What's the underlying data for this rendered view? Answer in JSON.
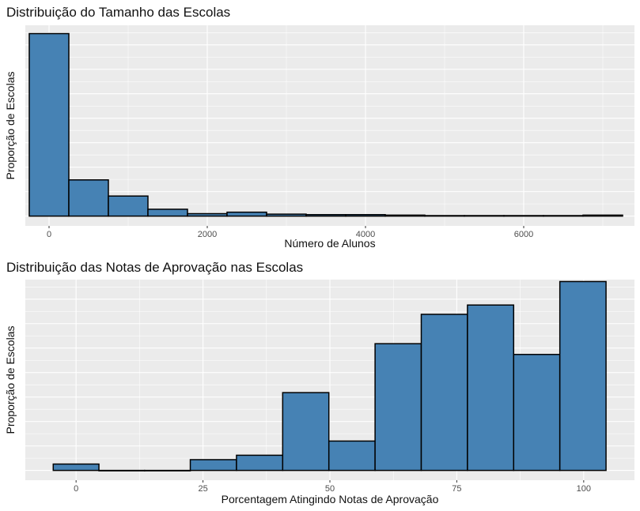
{
  "chart_data": [
    {
      "type": "bar",
      "title": "Distribuição do Tamanho das Escolas",
      "xlabel": "Número de Alunos",
      "ylabel": "Proporção de Escolas",
      "xlim": [
        -300,
        7400
      ],
      "ylim": [
        -0.02,
        0.39
      ],
      "x_ticks": [
        0,
        2000,
        4000,
        6000
      ],
      "grid": true,
      "bin_width": 500,
      "bins": [
        {
          "start": -250,
          "end": 250,
          "value": 0.373
        },
        {
          "start": 250,
          "end": 750,
          "value": 0.074
        },
        {
          "start": 750,
          "end": 1250,
          "value": 0.041
        },
        {
          "start": 1250,
          "end": 1750,
          "value": 0.014
        },
        {
          "start": 1750,
          "end": 2250,
          "value": 0.005
        },
        {
          "start": 2250,
          "end": 2750,
          "value": 0.008
        },
        {
          "start": 2750,
          "end": 3250,
          "value": 0.004
        },
        {
          "start": 3250,
          "end": 3750,
          "value": 0.003
        },
        {
          "start": 3750,
          "end": 4250,
          "value": 0.003
        },
        {
          "start": 4250,
          "end": 4750,
          "value": 0.002
        },
        {
          "start": 4750,
          "end": 5250,
          "value": 0.001
        },
        {
          "start": 5250,
          "end": 5750,
          "value": 0.001
        },
        {
          "start": 5750,
          "end": 6250,
          "value": 0.001
        },
        {
          "start": 6250,
          "end": 6750,
          "value": 0.001
        },
        {
          "start": 6750,
          "end": 7250,
          "value": 0.002
        }
      ]
    },
    {
      "type": "bar",
      "title": "Distribuição das Notas de Aprovação nas Escolas",
      "xlabel": "Porcentagem Atingindo Notas de Aprovação",
      "ylabel": "Proporção de Escolas",
      "xlim": [
        -10,
        110
      ],
      "ylim": [
        -0.02,
        0.39
      ],
      "x_ticks": [
        0,
        25,
        50,
        75,
        100
      ],
      "grid": true,
      "bins": [
        {
          "start": -4.5,
          "end": 4.5,
          "value": 0.013
        },
        {
          "start": 4.5,
          "end": 13.5,
          "value": 0.0
        },
        {
          "start": 13.5,
          "end": 22.5,
          "value": 0.0
        },
        {
          "start": 22.5,
          "end": 31.6,
          "value": 0.022
        },
        {
          "start": 31.6,
          "end": 40.7,
          "value": 0.031
        },
        {
          "start": 40.7,
          "end": 49.8,
          "value": 0.159
        },
        {
          "start": 49.8,
          "end": 58.9,
          "value": 0.06
        },
        {
          "start": 58.9,
          "end": 68.0,
          "value": 0.259
        },
        {
          "start": 68.0,
          "end": 77.1,
          "value": 0.319
        },
        {
          "start": 77.1,
          "end": 86.2,
          "value": 0.338
        },
        {
          "start": 86.2,
          "end": 95.3,
          "value": 0.237
        },
        {
          "start": 95.3,
          "end": 104.4,
          "value": 0.386
        }
      ]
    }
  ],
  "colors": {
    "bar_fill": "#4682b4",
    "bar_stroke": "#000000",
    "panel_bg": "#ebebeb",
    "grid": "#ffffff"
  }
}
